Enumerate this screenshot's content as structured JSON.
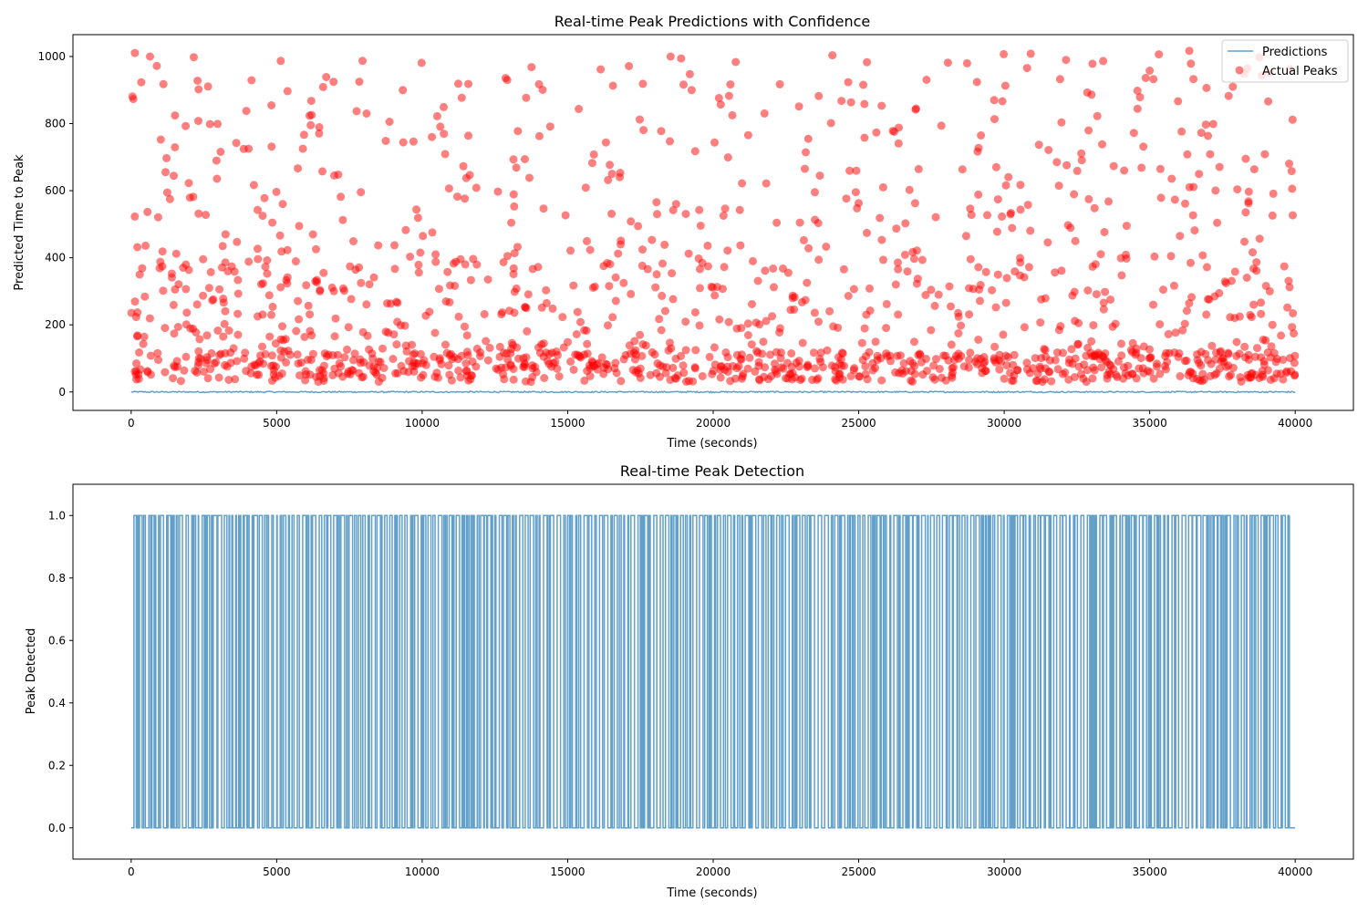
{
  "chart_data": [
    {
      "type": "scatter",
      "title": "Real-time Peak Predictions with Confidence",
      "xlabel": "Time (seconds)",
      "ylabel": "Predicted Time to Peak",
      "xlim": [
        -2000,
        42000
      ],
      "ylim": [
        -55,
        1065
      ],
      "xticks": [
        0,
        5000,
        10000,
        15000,
        20000,
        25000,
        30000,
        35000,
        40000
      ],
      "yticks": [
        0,
        200,
        400,
        600,
        800,
        1000
      ],
      "legend": {
        "placement": "top-right",
        "entries": [
          "Predictions",
          "Actual Peaks"
        ]
      },
      "series": [
        {
          "name": "Predictions",
          "kind": "line",
          "color": "#1f77b4",
          "opacity": 0.7,
          "x_range": [
            0,
            40000
          ],
          "approx_value": 0
        },
        {
          "name": "Actual Peaks",
          "kind": "scatter",
          "color": "#ff0000",
          "opacity": 0.5,
          "count_approx": 1500,
          "x_range": [
            0,
            40000
          ],
          "y_range": [
            30,
            1020
          ]
        }
      ]
    },
    {
      "type": "line",
      "title": "Real-time Peak Detection",
      "xlabel": "Time (seconds)",
      "ylabel": "Peak Detected",
      "xlim": [
        -2000,
        42000
      ],
      "ylim": [
        -0.1,
        1.1
      ],
      "xticks": [
        0,
        5000,
        10000,
        15000,
        20000,
        25000,
        30000,
        35000,
        40000
      ],
      "yticks": [
        0.0,
        0.2,
        0.4,
        0.6,
        0.8,
        1.0
      ],
      "ytick_labels": [
        "0.0",
        "0.2",
        "0.4",
        "0.6",
        "0.8",
        "1.0"
      ],
      "series": [
        {
          "name": "Peak Detected",
          "kind": "step",
          "color": "#1f77b4",
          "opacity": 0.7,
          "x_range": [
            0,
            40000
          ],
          "values": [
            0,
            1
          ]
        }
      ]
    }
  ]
}
